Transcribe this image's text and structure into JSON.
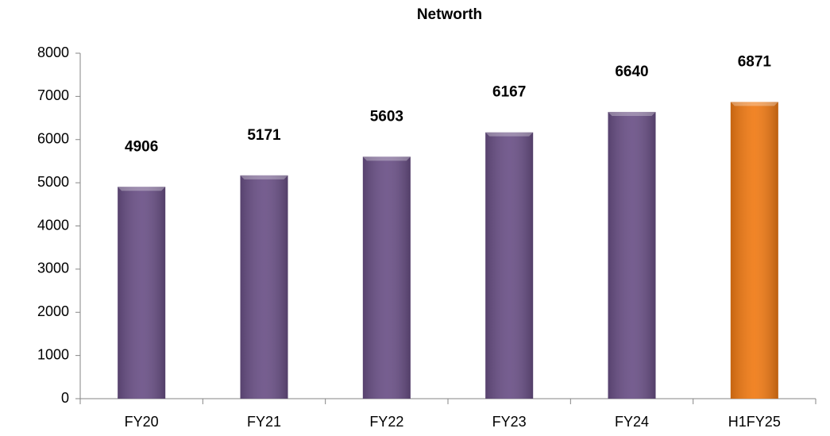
{
  "chart_data": {
    "type": "bar",
    "title": "Networth",
    "categories": [
      "FY20",
      "FY21",
      "FY22",
      "FY23",
      "FY24",
      "H1FY25"
    ],
    "values": [
      4906,
      5171,
      5603,
      6167,
      6640,
      6871
    ],
    "colors": [
      "#6a5086",
      "#6a5086",
      "#6a5086",
      "#6a5086",
      "#6a5086",
      "#f07a14"
    ],
    "ylim": [
      0,
      8000
    ],
    "yticks": [
      0,
      1000,
      2000,
      3000,
      4000,
      5000,
      6000,
      7000,
      8000
    ],
    "grid": false
  }
}
